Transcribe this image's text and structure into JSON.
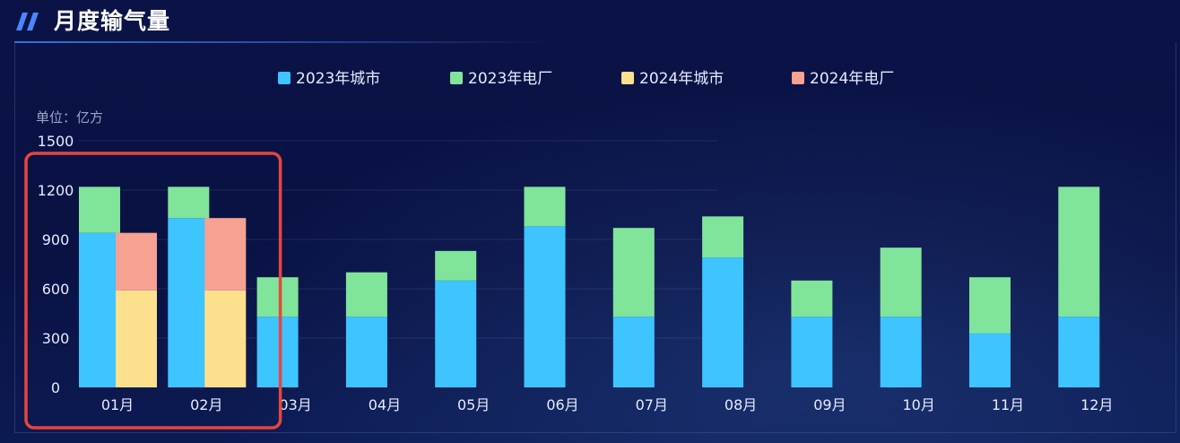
{
  "header": {
    "title": "月度输气量"
  },
  "chart_data": {
    "type": "bar",
    "unit_label": "单位：亿方",
    "categories": [
      "01月",
      "02月",
      "03月",
      "04月",
      "05月",
      "06月",
      "07月",
      "08月",
      "09月",
      "10月",
      "11月",
      "12月"
    ],
    "ylim": [
      0,
      1500
    ],
    "yticks": [
      0,
      300,
      600,
      900,
      1200,
      1500
    ],
    "legend_position": "top-center",
    "series": [
      {
        "name": "2023年城市",
        "stack": "2023",
        "color": "#3ec4ff",
        "values": [
          940,
          1030,
          430,
          430,
          650,
          980,
          430,
          790,
          430,
          430,
          330,
          430
        ]
      },
      {
        "name": "2023年电厂",
        "stack": "2023",
        "color": "#80e59a",
        "values": [
          280,
          190,
          240,
          270,
          180,
          240,
          540,
          250,
          220,
          420,
          340,
          790
        ]
      },
      {
        "name": "2024年城市",
        "stack": "2024",
        "color": "#fde08d",
        "values": [
          590,
          590,
          null,
          null,
          null,
          null,
          null,
          null,
          null,
          null,
          null,
          null
        ]
      },
      {
        "name": "2024年电厂",
        "stack": "2024",
        "color": "#f7a193",
        "values": [
          350,
          440,
          null,
          null,
          null,
          null,
          null,
          null,
          null,
          null,
          null,
          null
        ]
      }
    ],
    "highlight": {
      "color": "#e8453c",
      "categories": [
        "01月",
        "02月"
      ]
    },
    "grid": true
  }
}
